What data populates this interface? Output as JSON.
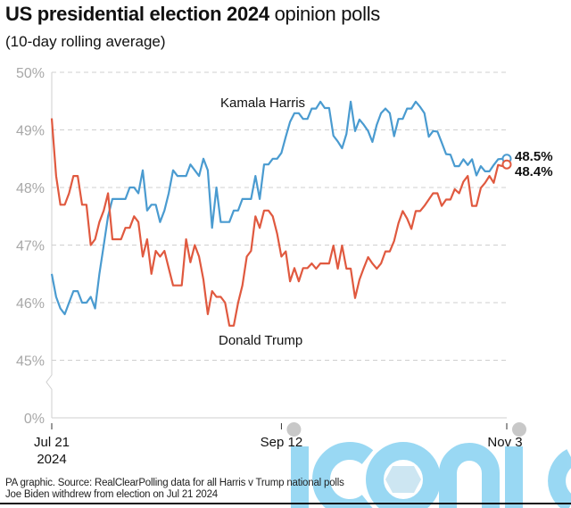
{
  "title_bold": "US presidential election 2024",
  "title_regular": "opinion polls",
  "subtitle": "(10-day rolling average)",
  "source_lines": [
    "PA graphic. Source: RealClearPolling data for all Harris v Trump national polls",
    "Joe Biden withdrew from election on Jul 21 2024"
  ],
  "watermark": "iconic",
  "chart_data": {
    "type": "line",
    "title": "US presidential election 2024 opinion polls",
    "subtitle": "(10-day rolling average)",
    "xlabel": "",
    "ylabel": "",
    "y_ticks": [
      "50%",
      "49%",
      "48%",
      "47%",
      "46%",
      "45%",
      "0%"
    ],
    "y_tick_values": [
      50,
      49,
      48,
      47,
      46,
      45,
      0
    ],
    "y_axis_break": "between 45% and 0%",
    "ylim": [
      45,
      50
    ],
    "x_ticks": [
      {
        "date": "2024-07-21",
        "label": "Jul 21",
        "sublabel": "2024"
      },
      {
        "date": "2024-09-12",
        "label": "Sep 12",
        "sublabel": ""
      },
      {
        "date": "2024-11-03",
        "label": "Nov 3",
        "sublabel": ""
      }
    ],
    "xlim": [
      "2024-07-21",
      "2024-11-03"
    ],
    "grid": "horizontal dashed",
    "x": [
      "2024-07-21",
      "2024-07-22",
      "2024-07-23",
      "2024-07-24",
      "2024-07-25",
      "2024-07-26",
      "2024-07-27",
      "2024-07-28",
      "2024-07-29",
      "2024-07-30",
      "2024-07-31",
      "2024-08-01",
      "2024-08-02",
      "2024-08-03",
      "2024-08-04",
      "2024-08-05",
      "2024-08-06",
      "2024-08-07",
      "2024-08-08",
      "2024-08-09",
      "2024-08-10",
      "2024-08-11",
      "2024-08-12",
      "2024-08-13",
      "2024-08-14",
      "2024-08-15",
      "2024-08-16",
      "2024-08-17",
      "2024-08-18",
      "2024-08-19",
      "2024-08-20",
      "2024-08-21",
      "2024-08-22",
      "2024-08-23",
      "2024-08-24",
      "2024-08-25",
      "2024-08-26",
      "2024-08-27",
      "2024-08-28",
      "2024-08-29",
      "2024-08-30",
      "2024-08-31",
      "2024-09-01",
      "2024-09-02",
      "2024-09-03",
      "2024-09-04",
      "2024-09-05",
      "2024-09-06",
      "2024-09-07",
      "2024-09-08",
      "2024-09-09",
      "2024-09-10",
      "2024-09-11",
      "2024-09-12",
      "2024-09-13",
      "2024-09-14",
      "2024-09-15",
      "2024-09-16",
      "2024-09-17",
      "2024-09-18",
      "2024-09-19",
      "2024-09-20",
      "2024-09-21",
      "2024-09-22",
      "2024-09-23",
      "2024-09-24",
      "2024-09-25",
      "2024-09-26",
      "2024-09-27",
      "2024-09-28",
      "2024-09-29",
      "2024-09-30",
      "2024-10-01",
      "2024-10-02",
      "2024-10-03",
      "2024-10-04",
      "2024-10-05",
      "2024-10-06",
      "2024-10-07",
      "2024-10-08",
      "2024-10-09",
      "2024-10-10",
      "2024-10-11",
      "2024-10-12",
      "2024-10-13",
      "2024-10-14",
      "2024-10-15",
      "2024-10-16",
      "2024-10-17",
      "2024-10-18",
      "2024-10-19",
      "2024-10-20",
      "2024-10-21",
      "2024-10-22",
      "2024-10-23",
      "2024-10-24",
      "2024-10-25",
      "2024-10-26",
      "2024-10-27",
      "2024-10-28",
      "2024-10-29",
      "2024-10-30",
      "2024-10-31",
      "2024-11-01",
      "2024-11-02",
      "2024-11-03"
    ],
    "series": [
      {
        "name": "Kamala Harris",
        "color": "#4a9bd0",
        "end_label": "48.5%",
        "values": [
          46.5,
          46.1,
          45.9,
          45.8,
          46.0,
          46.2,
          46.2,
          46.0,
          46.0,
          46.1,
          45.9,
          46.5,
          47.0,
          47.5,
          47.8,
          47.8,
          47.8,
          47.8,
          48.0,
          48.0,
          47.9,
          48.3,
          47.6,
          47.7,
          47.7,
          47.4,
          47.6,
          47.9,
          48.3,
          48.2,
          48.2,
          48.2,
          48.4,
          48.3,
          48.2,
          48.5,
          48.3,
          47.3,
          48.0,
          47.4,
          47.4,
          47.4,
          47.6,
          47.6,
          47.8,
          47.8,
          47.8,
          48.2,
          47.8,
          48.4,
          48.4,
          48.5,
          48.5,
          48.6,
          48.88,
          49.14,
          49.29,
          49.29,
          49.19,
          49.19,
          49.37,
          49.37,
          49.49,
          49.38,
          49.38,
          48.9,
          48.8,
          48.68,
          48.93,
          49.49,
          48.98,
          49.18,
          49.09,
          48.98,
          48.79,
          49.09,
          49.29,
          49.37,
          49.29,
          48.89,
          49.19,
          49.19,
          49.37,
          49.37,
          49.49,
          49.4,
          49.29,
          48.88,
          48.98,
          48.97,
          48.78,
          48.58,
          48.57,
          48.37,
          48.37,
          48.49,
          48.39,
          48.49,
          48.21,
          48.37,
          48.28,
          48.28,
          48.39,
          48.49,
          48.5,
          48.5
        ]
      },
      {
        "name": "Donald Trump",
        "color": "#e0593f",
        "end_label": "48.4%",
        "values": [
          49.2,
          48.2,
          47.7,
          47.7,
          47.9,
          48.2,
          48.2,
          47.7,
          47.7,
          47.0,
          47.1,
          47.4,
          47.6,
          47.9,
          47.1,
          47.1,
          47.1,
          47.3,
          47.3,
          47.5,
          47.4,
          46.8,
          47.1,
          46.5,
          46.9,
          46.8,
          46.9,
          46.6,
          46.3,
          46.3,
          46.3,
          47.1,
          46.7,
          47.0,
          46.8,
          46.4,
          45.8,
          46.2,
          46.1,
          46.1,
          46.0,
          45.6,
          45.6,
          46.0,
          46.3,
          46.8,
          46.9,
          47.5,
          47.3,
          47.6,
          47.6,
          47.5,
          47.2,
          46.8,
          46.89,
          46.37,
          46.6,
          46.37,
          46.6,
          46.6,
          46.68,
          46.59,
          46.68,
          46.68,
          46.68,
          46.99,
          46.59,
          46.99,
          46.59,
          46.59,
          46.08,
          46.4,
          46.6,
          46.79,
          46.68,
          46.59,
          46.68,
          46.89,
          46.89,
          47.07,
          47.38,
          47.59,
          47.46,
          47.28,
          47.59,
          47.59,
          47.68,
          47.79,
          47.9,
          47.9,
          47.68,
          47.79,
          47.79,
          47.97,
          47.9,
          48.1,
          48.2,
          47.68,
          47.68,
          47.99,
          48.08,
          48.2,
          48.08,
          48.39,
          48.37,
          48.4
        ]
      }
    ]
  }
}
